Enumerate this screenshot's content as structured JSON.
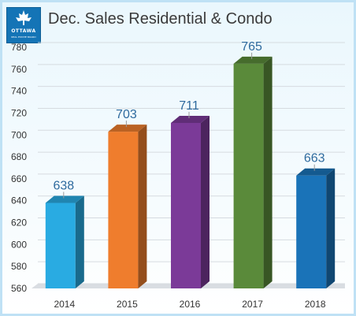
{
  "title": "Dec. Sales Residential & Condo",
  "logo": {
    "name": "OTTAWA",
    "subtext": "REAL ESTATE BOARD",
    "color": "#1474b6"
  },
  "chart_data": {
    "type": "bar",
    "title": "Dec. Sales Residential & Condo",
    "categories": [
      "2014",
      "2015",
      "2016",
      "2017",
      "2018"
    ],
    "values": [
      638,
      703,
      711,
      765,
      663
    ],
    "colors": [
      "#29abe2",
      "#ef7d2d",
      "#7b3a98",
      "#5a8a3a",
      "#1a73b8"
    ],
    "ylim": [
      560,
      780
    ],
    "yticks": [
      560,
      580,
      600,
      620,
      640,
      660,
      680,
      700,
      720,
      740,
      760,
      780
    ],
    "grid": true,
    "legend": false,
    "style": "3d"
  }
}
